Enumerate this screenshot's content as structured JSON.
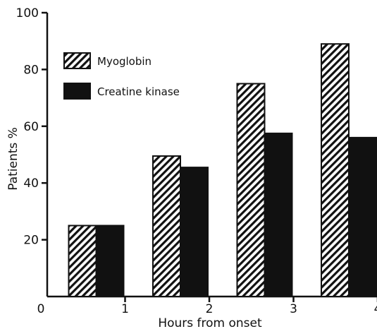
{
  "chart_data": {
    "type": "bar",
    "title": "",
    "xlabel": "Hours from onset",
    "ylabel": "Patients %",
    "x_ticks": [
      "0",
      "1",
      "2",
      "3",
      "4"
    ],
    "categories": [
      "1",
      "2",
      "3",
      "4"
    ],
    "ylim": [
      0,
      100
    ],
    "y_ticks": [
      20,
      40,
      60,
      80,
      100
    ],
    "grid": false,
    "legend_position": "top-left",
    "series": [
      {
        "name": "Myoglobin",
        "pattern": "diagonal-hatch",
        "color": "#111111",
        "values": [
          25,
          49.5,
          75,
          89
        ]
      },
      {
        "name": "Creatine kinase",
        "pattern": "solid",
        "color": "#111111",
        "values": [
          25,
          45.5,
          57.5,
          56
        ]
      }
    ]
  }
}
